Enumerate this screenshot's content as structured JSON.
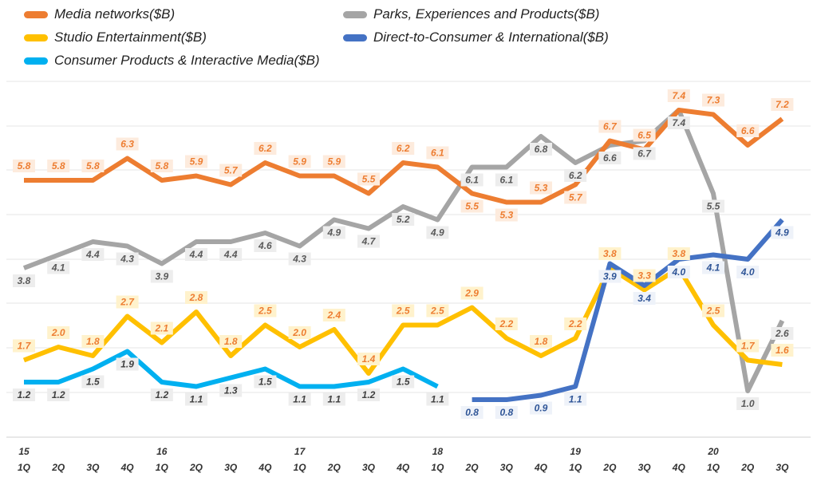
{
  "chart_data": {
    "type": "line",
    "categories": [
      "15 1Q",
      "2Q",
      "3Q",
      "4Q",
      "16 1Q",
      "2Q",
      "3Q",
      "4Q",
      "17 1Q",
      "2Q",
      "3Q",
      "4Q",
      "18 1Q",
      "2Q",
      "3Q",
      "4Q",
      "19 1Q",
      "2Q",
      "3Q",
      "4Q",
      "20 1Q",
      "2Q",
      "3Q"
    ],
    "year_labels": [
      "15",
      "",
      "",
      "",
      "16",
      "",
      "",
      "",
      "17",
      "",
      "",
      "",
      "18",
      "",
      "",
      "",
      "19",
      "",
      "",
      "",
      "20",
      "",
      ""
    ],
    "quarter_labels": [
      "1Q",
      "2Q",
      "3Q",
      "4Q",
      "1Q",
      "2Q",
      "3Q",
      "4Q",
      "1Q",
      "2Q",
      "3Q",
      "4Q",
      "1Q",
      "2Q",
      "3Q",
      "4Q",
      "1Q",
      "2Q",
      "3Q",
      "4Q",
      "1Q",
      "2Q",
      "3Q"
    ],
    "grid": true,
    "legend_placement": "top",
    "series": [
      {
        "name": "Media networks($B)",
        "color": "#ED7D31",
        "label_color": "#ED7D31",
        "label_bg": "#FDEBDD",
        "label_pos": "above",
        "values": [
          5.8,
          5.8,
          5.8,
          6.3,
          5.8,
          5.9,
          5.7,
          6.2,
          5.9,
          5.9,
          5.5,
          6.2,
          6.1,
          5.5,
          5.3,
          5.3,
          5.7,
          6.7,
          6.5,
          7.4,
          7.3,
          6.6,
          7.2
        ]
      },
      {
        "name": "Parks, Experiences and Products($B)",
        "color": "#A5A5A5",
        "label_color": "#595959",
        "label_bg": "#EDEDED",
        "label_pos": "below",
        "values": [
          3.8,
          4.1,
          4.4,
          4.3,
          3.9,
          4.4,
          4.4,
          4.6,
          4.3,
          4.9,
          4.7,
          5.2,
          4.9,
          6.1,
          6.1,
          6.8,
          6.2,
          6.6,
          6.7,
          7.4,
          5.5,
          1.0,
          2.6
        ]
      },
      {
        "name": "Studio Entertainment($B)",
        "color": "#FFC000",
        "label_color": "#ED7D31",
        "label_bg": "#FFF2CC",
        "label_pos": "above",
        "values": [
          1.7,
          2.0,
          1.8,
          2.7,
          2.1,
          2.8,
          1.8,
          2.5,
          2.0,
          2.4,
          1.4,
          2.5,
          2.5,
          2.9,
          2.2,
          1.8,
          2.2,
          3.8,
          3.3,
          3.8,
          2.5,
          1.7,
          1.6
        ]
      },
      {
        "name": "Direct-to-Consumer & International($B)",
        "color": "#4472C4",
        "label_color": "#2F5597",
        "label_bg": "#EEF2F9",
        "label_pos": "below",
        "values": [
          null,
          null,
          null,
          null,
          null,
          null,
          null,
          null,
          null,
          null,
          null,
          null,
          null,
          0.8,
          0.8,
          0.9,
          1.1,
          3.9,
          3.4,
          4.0,
          4.1,
          4.0,
          4.9
        ]
      },
      {
        "name": "Consumer Products & Interactive Media($B)",
        "color": "#00B0F0",
        "label_color": "#404040",
        "label_bg": "#EDEDED",
        "label_pos": "below",
        "values": [
          1.2,
          1.2,
          1.5,
          1.9,
          1.2,
          1.1,
          1.3,
          1.5,
          1.1,
          1.1,
          1.2,
          1.5,
          1.1,
          null,
          null,
          null,
          null,
          null,
          null,
          null,
          null,
          null,
          null
        ]
      }
    ]
  }
}
